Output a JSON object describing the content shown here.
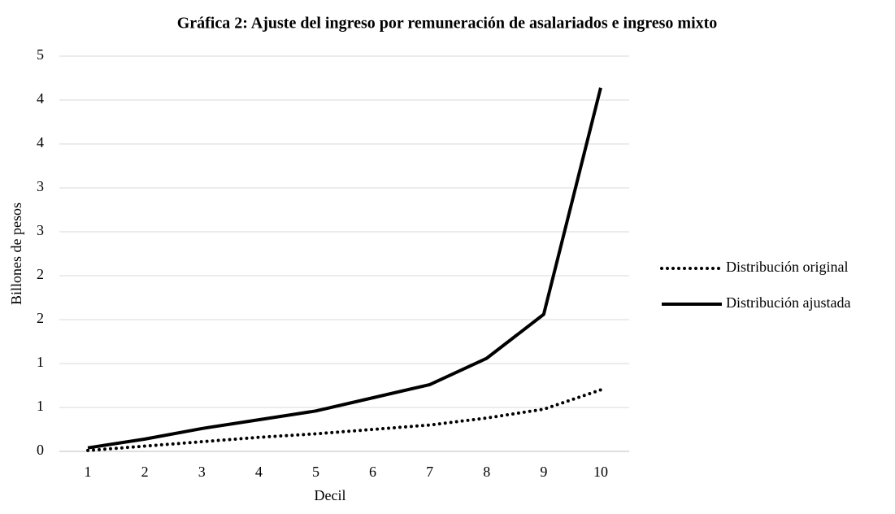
{
  "chart_data": {
    "type": "line",
    "title": "Gráfica 2: Ajuste del ingreso por remuneración de asalariados e ingreso mixto",
    "xlabel": "Decil",
    "ylabel": "Billones de pesos",
    "categories": [
      "1",
      "2",
      "3",
      "4",
      "5",
      "6",
      "7",
      "8",
      "9",
      "10"
    ],
    "series": [
      {
        "name": "Distribución original",
        "color": "#000000",
        "style": "dotted",
        "values": [
          0.01,
          0.06,
          0.11,
          0.16,
          0.2,
          0.25,
          0.3,
          0.38,
          0.48,
          0.7
        ]
      },
      {
        "name": "Distribución ajustada",
        "color": "#000000",
        "style": "solid",
        "values": [
          0.04,
          0.14,
          0.26,
          0.36,
          0.46,
          0.61,
          0.76,
          1.06,
          1.56,
          4.14
        ]
      }
    ],
    "ylim": [
      0,
      4.5
    ],
    "yticks": [
      {
        "value": 0,
        "label": "0"
      },
      {
        "value": 0.5,
        "label": "1"
      },
      {
        "value": 1,
        "label": "1"
      },
      {
        "value": 1.5,
        "label": "2"
      },
      {
        "value": 2,
        "label": "2"
      },
      {
        "value": 2.5,
        "label": "3"
      },
      {
        "value": 3,
        "label": "3"
      },
      {
        "value": 3.5,
        "label": "4"
      },
      {
        "value": 4,
        "label": "4"
      },
      {
        "value": 4.5,
        "label": "5"
      }
    ],
    "grid": true,
    "legend": "right"
  }
}
